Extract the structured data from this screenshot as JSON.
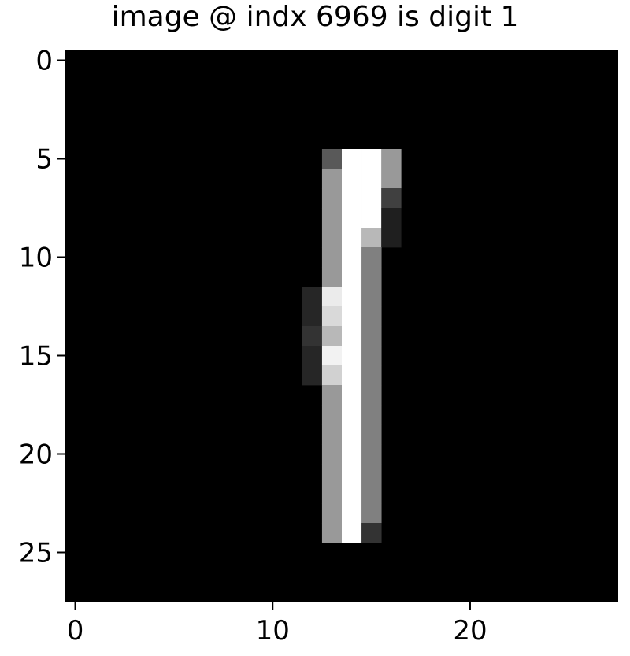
{
  "chart_data": {
    "type": "heatmap",
    "title": "image @ indx 6969 is digit 1",
    "xlabel": "",
    "ylabel": "",
    "colormap": "gray",
    "x_ticks": [
      0,
      10,
      20
    ],
    "y_ticks": [
      0,
      5,
      10,
      15,
      20,
      25
    ],
    "xlim": [
      -0.5,
      27.5
    ],
    "ylim": [
      27.5,
      -0.5
    ],
    "grid": false,
    "rows": 28,
    "cols": 28,
    "nonzero_cells": [
      {
        "r": 5,
        "c": 13,
        "v": 0.35
      },
      {
        "r": 5,
        "c": 14,
        "v": 1.0
      },
      {
        "r": 5,
        "c": 15,
        "v": 1.0
      },
      {
        "r": 5,
        "c": 16,
        "v": 0.6
      },
      {
        "r": 6,
        "c": 13,
        "v": 0.6
      },
      {
        "r": 6,
        "c": 14,
        "v": 1.0
      },
      {
        "r": 6,
        "c": 15,
        "v": 1.0
      },
      {
        "r": 6,
        "c": 16,
        "v": 0.6
      },
      {
        "r": 7,
        "c": 13,
        "v": 0.6
      },
      {
        "r": 7,
        "c": 14,
        "v": 1.0
      },
      {
        "r": 7,
        "c": 15,
        "v": 1.0
      },
      {
        "r": 7,
        "c": 16,
        "v": 0.25
      },
      {
        "r": 8,
        "c": 13,
        "v": 0.6
      },
      {
        "r": 8,
        "c": 14,
        "v": 1.0
      },
      {
        "r": 8,
        "c": 15,
        "v": 1.0
      },
      {
        "r": 8,
        "c": 16,
        "v": 0.12
      },
      {
        "r": 9,
        "c": 13,
        "v": 0.6
      },
      {
        "r": 9,
        "c": 14,
        "v": 1.0
      },
      {
        "r": 9,
        "c": 15,
        "v": 0.72
      },
      {
        "r": 9,
        "c": 16,
        "v": 0.12
      },
      {
        "r": 10,
        "c": 13,
        "v": 0.6
      },
      {
        "r": 10,
        "c": 14,
        "v": 1.0
      },
      {
        "r": 10,
        "c": 15,
        "v": 0.5
      },
      {
        "r": 11,
        "c": 13,
        "v": 0.6
      },
      {
        "r": 11,
        "c": 14,
        "v": 1.0
      },
      {
        "r": 11,
        "c": 15,
        "v": 0.5
      },
      {
        "r": 12,
        "c": 12,
        "v": 0.15
      },
      {
        "r": 12,
        "c": 13,
        "v": 0.92
      },
      {
        "r": 12,
        "c": 14,
        "v": 1.0
      },
      {
        "r": 12,
        "c": 15,
        "v": 0.5
      },
      {
        "r": 13,
        "c": 12,
        "v": 0.15
      },
      {
        "r": 13,
        "c": 13,
        "v": 0.85
      },
      {
        "r": 13,
        "c": 14,
        "v": 1.0
      },
      {
        "r": 13,
        "c": 15,
        "v": 0.5
      },
      {
        "r": 14,
        "c": 12,
        "v": 0.2
      },
      {
        "r": 14,
        "c": 13,
        "v": 0.72
      },
      {
        "r": 14,
        "c": 14,
        "v": 1.0
      },
      {
        "r": 14,
        "c": 15,
        "v": 0.5
      },
      {
        "r": 15,
        "c": 12,
        "v": 0.15
      },
      {
        "r": 15,
        "c": 13,
        "v": 0.95
      },
      {
        "r": 15,
        "c": 14,
        "v": 1.0
      },
      {
        "r": 15,
        "c": 15,
        "v": 0.5
      },
      {
        "r": 16,
        "c": 12,
        "v": 0.15
      },
      {
        "r": 16,
        "c": 13,
        "v": 0.82
      },
      {
        "r": 16,
        "c": 14,
        "v": 1.0
      },
      {
        "r": 16,
        "c": 15,
        "v": 0.5
      },
      {
        "r": 17,
        "c": 13,
        "v": 0.6
      },
      {
        "r": 17,
        "c": 14,
        "v": 1.0
      },
      {
        "r": 17,
        "c": 15,
        "v": 0.5
      },
      {
        "r": 18,
        "c": 13,
        "v": 0.6
      },
      {
        "r": 18,
        "c": 14,
        "v": 1.0
      },
      {
        "r": 18,
        "c": 15,
        "v": 0.5
      },
      {
        "r": 19,
        "c": 13,
        "v": 0.6
      },
      {
        "r": 19,
        "c": 14,
        "v": 1.0
      },
      {
        "r": 19,
        "c": 15,
        "v": 0.5
      },
      {
        "r": 20,
        "c": 13,
        "v": 0.6
      },
      {
        "r": 20,
        "c": 14,
        "v": 1.0
      },
      {
        "r": 20,
        "c": 15,
        "v": 0.5
      },
      {
        "r": 21,
        "c": 13,
        "v": 0.6
      },
      {
        "r": 21,
        "c": 14,
        "v": 1.0
      },
      {
        "r": 21,
        "c": 15,
        "v": 0.5
      },
      {
        "r": 22,
        "c": 13,
        "v": 0.6
      },
      {
        "r": 22,
        "c": 14,
        "v": 1.0
      },
      {
        "r": 22,
        "c": 15,
        "v": 0.5
      },
      {
        "r": 23,
        "c": 13,
        "v": 0.6
      },
      {
        "r": 23,
        "c": 14,
        "v": 1.0
      },
      {
        "r": 23,
        "c": 15,
        "v": 0.5
      },
      {
        "r": 24,
        "c": 13,
        "v": 0.6
      },
      {
        "r": 24,
        "c": 14,
        "v": 1.0
      },
      {
        "r": 24,
        "c": 15,
        "v": 0.2
      }
    ]
  }
}
